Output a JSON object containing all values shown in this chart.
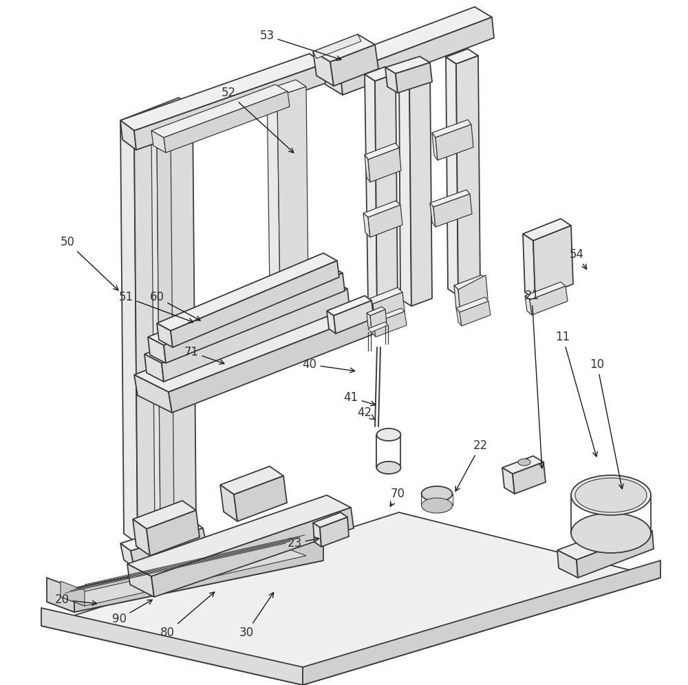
{
  "bg_color": "#ffffff",
  "line_color": "#3a3a3a",
  "lw": 1.3,
  "face_light": "#f5f5f5",
  "face_mid": "#ebebeb",
  "face_dark": "#dcdcdc",
  "labels": [
    [
      "53",
      388,
      52,
      500,
      88
    ],
    [
      "52",
      332,
      135,
      430,
      225
    ],
    [
      "50",
      98,
      352,
      175,
      425
    ],
    [
      "51",
      183,
      432,
      285,
      470
    ],
    [
      "60",
      228,
      432,
      295,
      468
    ],
    [
      "71",
      278,
      512,
      330,
      530
    ],
    [
      "40",
      450,
      530,
      520,
      540
    ],
    [
      "41",
      510,
      578,
      550,
      590
    ],
    [
      "42",
      530,
      600,
      548,
      612
    ],
    [
      "70",
      578,
      718,
      565,
      740
    ],
    [
      "22",
      698,
      648,
      660,
      718
    ],
    [
      "23",
      428,
      790,
      468,
      782
    ],
    [
      "30",
      358,
      920,
      400,
      858
    ],
    [
      "80",
      243,
      920,
      315,
      858
    ],
    [
      "90",
      173,
      900,
      225,
      870
    ],
    [
      "20",
      90,
      872,
      145,
      878
    ],
    [
      "10",
      868,
      530,
      905,
      715
    ],
    [
      "11",
      818,
      490,
      868,
      668
    ],
    [
      "21",
      773,
      430,
      788,
      685
    ],
    [
      "54",
      838,
      370,
      855,
      395
    ]
  ]
}
